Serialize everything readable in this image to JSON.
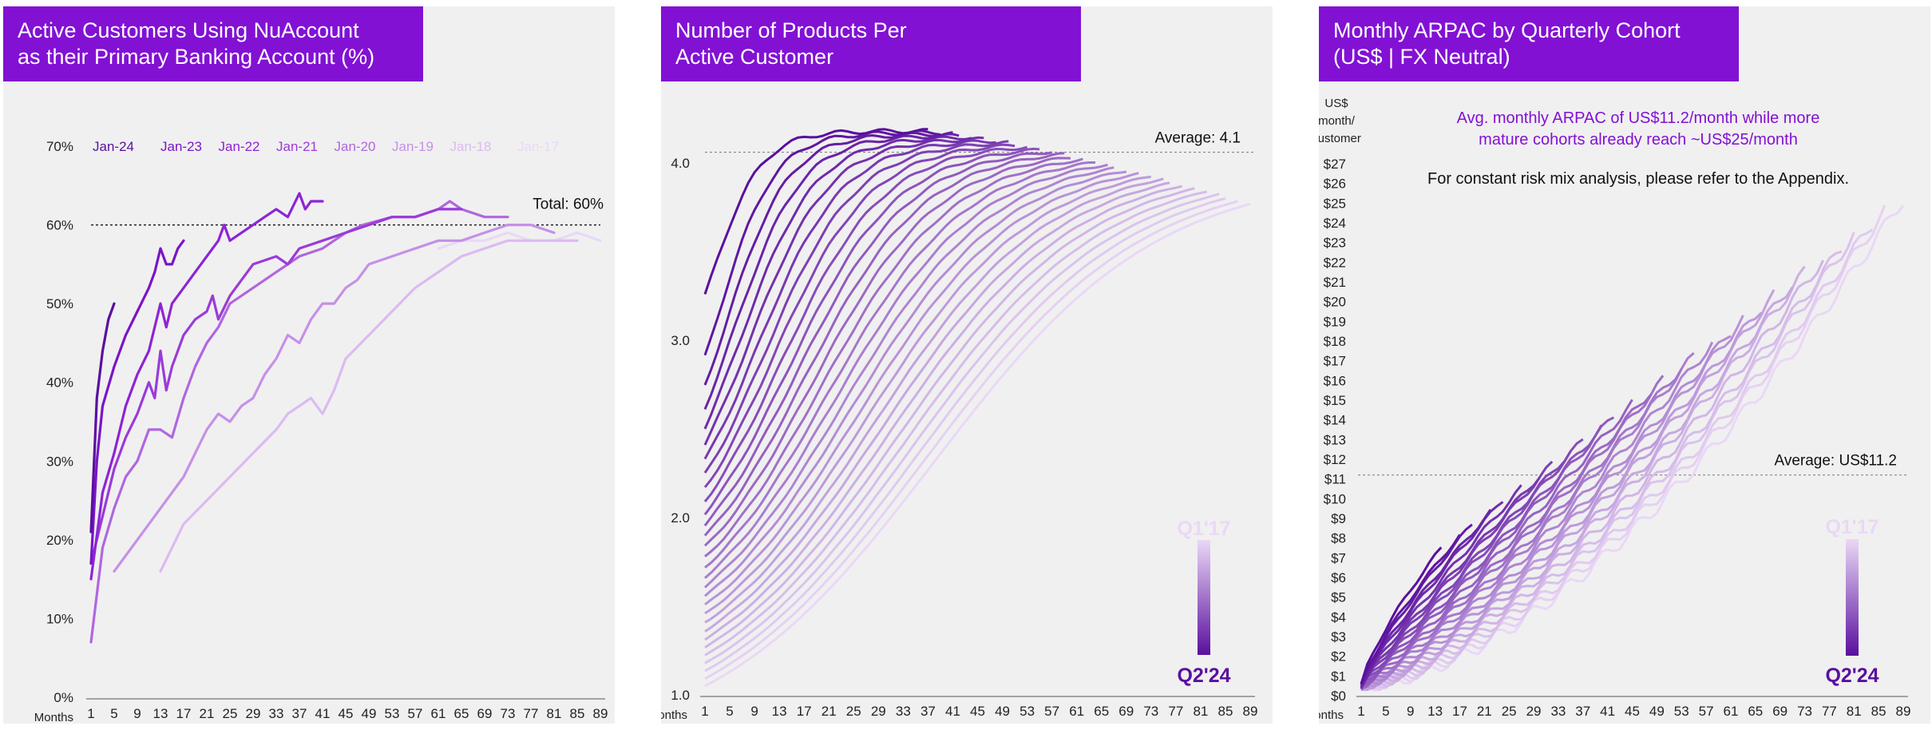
{
  "colors": {
    "accent": "#8211d4",
    "panel_bg": "#f0f0f0",
    "dark": "#5a0f9e",
    "light": "#ead8f6"
  },
  "chart_data": [
    {
      "type": "line",
      "title_lines": [
        "Active Customers Using NuAccount",
        "as their Primary Banking Account (%)"
      ],
      "xlabel": "Months",
      "x_ticks": [
        1,
        5,
        9,
        13,
        17,
        21,
        25,
        29,
        33,
        37,
        41,
        45,
        49,
        53,
        57,
        61,
        65,
        69,
        73,
        77,
        81,
        85,
        89
      ],
      "y_ticks": [
        "0%",
        "10%",
        "20%",
        "30%",
        "40%",
        "50%",
        "60%",
        "70%"
      ],
      "xlim": [
        1,
        89
      ],
      "ylim": [
        0,
        70
      ],
      "reference_line": {
        "value": 60,
        "label": "Total: 60%"
      },
      "series": [
        {
          "name": "Jan-24",
          "color": "#5a0f9e",
          "points": [
            [
              1,
              21
            ],
            [
              2,
              38
            ],
            [
              3,
              44
            ],
            [
              4,
              48
            ],
            [
              5,
              50
            ]
          ]
        },
        {
          "name": "Jan-23",
          "color": "#7b14c7",
          "points": [
            [
              1,
              17
            ],
            [
              2,
              30
            ],
            [
              3,
              37
            ],
            [
              5,
              42
            ],
            [
              7,
              46
            ],
            [
              9,
              49
            ],
            [
              11,
              52
            ],
            [
              12,
              54
            ],
            [
              13,
              57
            ],
            [
              14,
              55
            ],
            [
              15,
              55
            ],
            [
              16,
              57
            ],
            [
              17,
              58
            ]
          ]
        },
        {
          "name": "Jan-22",
          "color": "#8d24d6",
          "points": [
            [
              1,
              15
            ],
            [
              3,
              26
            ],
            [
              5,
              31
            ],
            [
              7,
              37
            ],
            [
              9,
              41
            ],
            [
              11,
              44
            ],
            [
              13,
              50
            ],
            [
              14,
              47
            ],
            [
              15,
              50
            ],
            [
              17,
              52
            ],
            [
              19,
              54
            ],
            [
              21,
              56
            ],
            [
              23,
              58
            ],
            [
              24,
              60
            ],
            [
              25,
              58
            ],
            [
              27,
              59
            ],
            [
              29,
              60
            ],
            [
              31,
              61
            ],
            [
              33,
              62
            ],
            [
              35,
              61
            ],
            [
              37,
              64
            ],
            [
              38,
              62
            ],
            [
              39,
              63
            ],
            [
              41,
              63
            ]
          ]
        },
        {
          "name": "Jan-21",
          "color": "#9b3ad9",
          "points": [
            [
              1,
              17
            ],
            [
              3,
              23
            ],
            [
              5,
              29
            ],
            [
              7,
              33
            ],
            [
              9,
              36
            ],
            [
              11,
              40
            ],
            [
              12,
              38
            ],
            [
              13,
              44
            ],
            [
              14,
              39
            ],
            [
              15,
              42
            ],
            [
              17,
              46
            ],
            [
              19,
              48
            ],
            [
              21,
              49
            ],
            [
              22,
              51
            ],
            [
              23,
              48
            ],
            [
              25,
              51
            ],
            [
              27,
              53
            ],
            [
              29,
              55
            ],
            [
              33,
              56
            ],
            [
              35,
              55
            ],
            [
              37,
              57
            ],
            [
              41,
              58
            ],
            [
              45,
              59
            ],
            [
              49,
              60
            ],
            [
              53,
              61
            ],
            [
              57,
              61
            ],
            [
              61,
              62
            ],
            [
              65,
              62
            ]
          ]
        },
        {
          "name": "Jan-20",
          "color": "#b066e0",
          "points": [
            [
              1,
              7
            ],
            [
              3,
              19
            ],
            [
              5,
              24
            ],
            [
              7,
              28
            ],
            [
              9,
              30
            ],
            [
              11,
              34
            ],
            [
              13,
              34
            ],
            [
              15,
              33
            ],
            [
              17,
              38
            ],
            [
              19,
              42
            ],
            [
              21,
              45
            ],
            [
              23,
              47
            ],
            [
              25,
              50
            ],
            [
              27,
              51
            ],
            [
              29,
              52
            ],
            [
              33,
              54
            ],
            [
              37,
              56
            ],
            [
              41,
              57
            ],
            [
              45,
              59
            ],
            [
              48,
              60
            ],
            [
              53,
              61
            ],
            [
              57,
              61
            ],
            [
              61,
              62
            ],
            [
              63,
              63
            ],
            [
              65,
              62
            ],
            [
              69,
              61
            ],
            [
              73,
              61
            ]
          ]
        },
        {
          "name": "Jan-19",
          "color": "#c590e8",
          "points": [
            [
              5,
              16
            ],
            [
              9,
              20
            ],
            [
              13,
              24
            ],
            [
              17,
              28
            ],
            [
              19,
              31
            ],
            [
              21,
              34
            ],
            [
              23,
              36
            ],
            [
              25,
              35
            ],
            [
              27,
              37
            ],
            [
              29,
              38
            ],
            [
              31,
              41
            ],
            [
              33,
              43
            ],
            [
              35,
              46
            ],
            [
              37,
              45
            ],
            [
              39,
              48
            ],
            [
              41,
              50
            ],
            [
              43,
              50
            ],
            [
              45,
              52
            ],
            [
              47,
              53
            ],
            [
              49,
              55
            ],
            [
              53,
              56
            ],
            [
              57,
              57
            ],
            [
              61,
              58
            ],
            [
              65,
              58
            ],
            [
              69,
              59
            ],
            [
              73,
              60
            ],
            [
              77,
              60
            ],
            [
              81,
              59
            ]
          ]
        },
        {
          "name": "Jan-18",
          "color": "#dcbaf1",
          "points": [
            [
              13,
              16
            ],
            [
              15,
              19
            ],
            [
              17,
              22
            ],
            [
              21,
              25
            ],
            [
              25,
              28
            ],
            [
              29,
              31
            ],
            [
              33,
              34
            ],
            [
              35,
              36
            ],
            [
              37,
              37
            ],
            [
              39,
              38
            ],
            [
              41,
              36
            ],
            [
              43,
              39
            ],
            [
              45,
              43
            ],
            [
              49,
              46
            ],
            [
              53,
              49
            ],
            [
              57,
              52
            ],
            [
              61,
              54
            ],
            [
              65,
              56
            ],
            [
              69,
              57
            ],
            [
              73,
              58
            ],
            [
              77,
              58
            ],
            [
              81,
              58
            ],
            [
              85,
              58
            ]
          ]
        },
        {
          "name": "Jan-17",
          "color": "#ead8f6",
          "points": [
            [
              61,
              57
            ],
            [
              65,
              58
            ],
            [
              69,
              58
            ],
            [
              73,
              59
            ],
            [
              77,
              58
            ],
            [
              81,
              58
            ],
            [
              85,
              59
            ],
            [
              89,
              58
            ]
          ]
        }
      ]
    },
    {
      "type": "line",
      "title_lines": [
        "Number of Products Per",
        "Active Customer"
      ],
      "xlabel": "Months",
      "x_ticks": [
        1,
        5,
        9,
        13,
        17,
        21,
        25,
        29,
        33,
        37,
        41,
        45,
        49,
        53,
        57,
        61,
        65,
        69,
        73,
        77,
        81,
        85,
        89
      ],
      "y_ticks": [
        "1.0",
        "2.0",
        "3.0",
        "4.0"
      ],
      "xlim": [
        1,
        89
      ],
      "ylim": [
        1.0,
        4.0
      ],
      "reference_line": {
        "value": 4.06,
        "label": "Average: 4.1"
      },
      "cohort_legend": {
        "top": "Q1'17",
        "bottom": "Q2'24"
      },
      "cohort_count": 30,
      "cohort_shape": {
        "start_high": 3.25,
        "start_low": 1.05,
        "end_high": 4.18,
        "end_low": 3.95,
        "last_start_month": 89,
        "first_length": 37,
        "midpoint_month_last": 38,
        "midpoint_month_first": 2
      }
    },
    {
      "type": "line",
      "title_lines": [
        "Monthly ARPAC by Quarterly Cohort",
        "(US$ | FX Neutral)"
      ],
      "xlabel": "Months",
      "y_unit_label": [
        "US$",
        "month/",
        "customer"
      ],
      "x_ticks": [
        1,
        5,
        9,
        13,
        17,
        21,
        25,
        29,
        33,
        37,
        41,
        45,
        49,
        53,
        57,
        61,
        65,
        69,
        73,
        77,
        81,
        85,
        89
      ],
      "y_ticks": [
        "$0",
        "$1",
        "$2",
        "$3",
        "$4",
        "$5",
        "$6",
        "$7",
        "$8",
        "$9",
        "$10",
        "$11",
        "$12",
        "$13",
        "$14",
        "$15",
        "$16",
        "$17",
        "$18",
        "$19",
        "$20",
        "$21",
        "$22",
        "$23",
        "$24",
        "$25",
        "$26",
        "$27"
      ],
      "xlim": [
        1,
        89
      ],
      "ylim": [
        0,
        27
      ],
      "reference_line": {
        "value": 11.2,
        "label": "Average: US$11.2"
      },
      "annotation_lines": [
        "Avg. monthly ARPAC of US$11.2/month while more",
        "mature cohorts already reach ~US$25/month"
      ],
      "note": "For constant risk mix analysis, please refer to the Appendix.",
      "cohort_legend": {
        "top": "Q1'17",
        "bottom": "Q2'24"
      },
      "cohort_count": 30,
      "cohort_shape": {
        "end_value_first": 25.2,
        "end_value_last": 7.5,
        "first_length": 89,
        "last_length": 14
      }
    }
  ]
}
